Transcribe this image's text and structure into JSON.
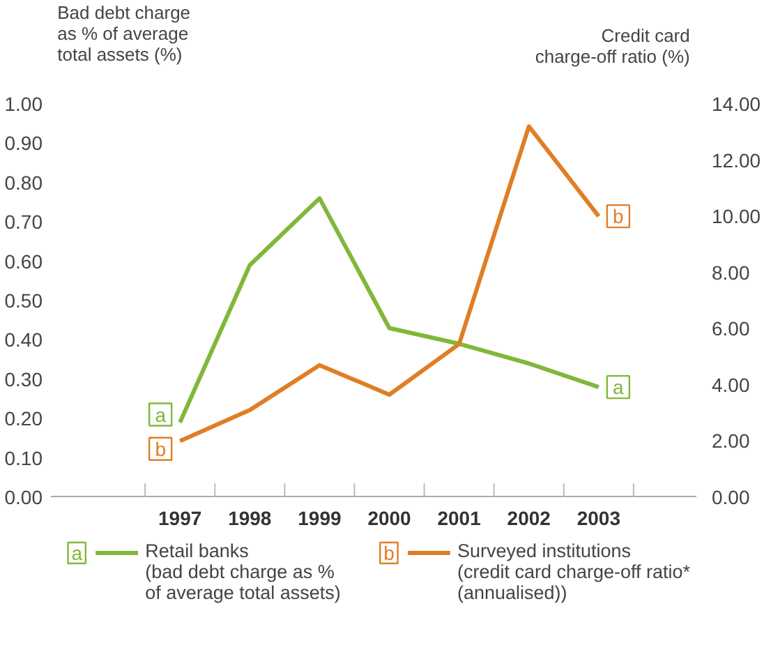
{
  "chart_data": {
    "type": "line",
    "ylabel": "Bad debt charge\nas % of average\ntotal assets (%)",
    "y2label": "Credit card\ncharge-off ratio (%)",
    "categories": [
      "1997",
      "1998",
      "1999",
      "2000",
      "2001",
      "2002",
      "2003"
    ],
    "series": [
      {
        "name": "Retail banks\n(bad debt charge as %\nof average total assets)",
        "color": "#80b83a",
        "values": [
          0.19,
          0.59,
          0.76,
          0.43,
          0.39,
          0.34,
          0.28
        ]
      },
      {
        "name": "Surveyed institutions\n(credit card charge-off ratio*\n(annualised))",
        "color": "#e07e26",
        "axis": "y2",
        "values": [
          2.0,
          3.1,
          4.7,
          3.65,
          5.45,
          13.2,
          10.0
        ]
      }
    ],
    "annotations": [
      "a",
      "b"
    ],
    "ylim": [
      0,
      1
    ],
    "yticks": [
      {
        "value": 0,
        "label": "0.00"
      },
      {
        "value": 0.1,
        "label": "0.10"
      },
      {
        "value": 0.2,
        "label": "0.20"
      },
      {
        "value": 0.3,
        "label": "0.30"
      },
      {
        "value": 0.4,
        "label": "0.40"
      },
      {
        "value": 0.5,
        "label": "0.50"
      },
      {
        "value": 0.6,
        "label": "0.60"
      },
      {
        "value": 0.7,
        "label": "0.70"
      },
      {
        "value": 0.8,
        "label": "0.80"
      },
      {
        "value": 0.9,
        "label": "0.90"
      },
      {
        "value": 1,
        "label": "1.00"
      }
    ],
    "y2lim": [
      0,
      14
    ],
    "y2ticks": [
      {
        "value": 0,
        "label": "0.00"
      },
      {
        "value": 2,
        "label": "2.00"
      },
      {
        "value": 4,
        "label": "4.00"
      },
      {
        "value": 6,
        "label": "6.00"
      },
      {
        "value": 8,
        "label": "8.00"
      },
      {
        "value": 10,
        "label": "10.00"
      },
      {
        "value": 12,
        "label": "12.00"
      },
      {
        "value": 14,
        "label": "14.00"
      }
    ],
    "grid": false,
    "legend": "bottom",
    "marker": "none",
    "line_style": "solid"
  }
}
